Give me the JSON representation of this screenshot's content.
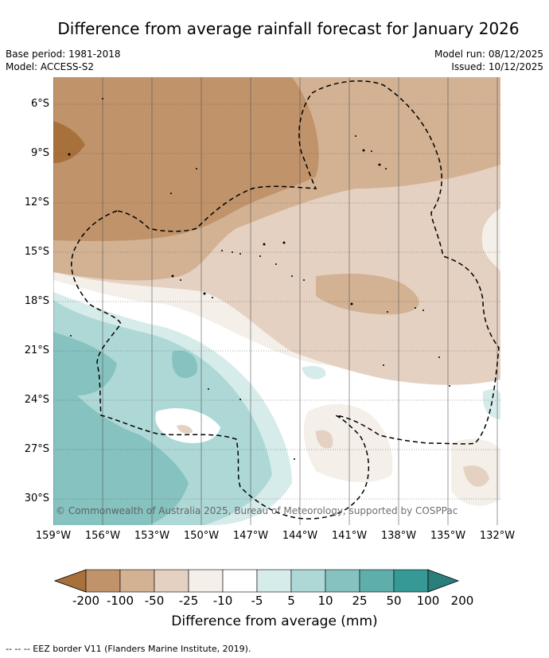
{
  "title": "Difference from average rainfall forecast for January 2026",
  "meta": {
    "base_period": "Base period: 1981-2018",
    "model": "Model: ACCESS-S2",
    "model_run": "Model run: 08/12/2025",
    "issued": "Issued: 10/12/2025"
  },
  "map": {
    "copyright": "© Commonwealth of Australia 2025, Bureau of Meteorology, supported by COSPPac",
    "lat_labels": [
      "6°S",
      "9°S",
      "12°S",
      "15°S",
      "18°S",
      "21°S",
      "24°S",
      "27°S",
      "30°S"
    ],
    "lon_labels": [
      "159°W",
      "156°W",
      "153°W",
      "150°W",
      "147°W",
      "144°W",
      "141°W",
      "138°W",
      "135°W",
      "132°W"
    ],
    "border_label": "EEZ border V11"
  },
  "colorbar": {
    "title": "Difference from average (mm)",
    "tick_labels": [
      "-200",
      "-100",
      "-50",
      "-25",
      "-10",
      "-5",
      "5",
      "10",
      "25",
      "50",
      "100",
      "200"
    ],
    "colors": [
      "#a8703b",
      "#c0936a",
      "#d3b293",
      "#e5d1c1",
      "#f4efe8",
      "#ffffff",
      "#d6ecea",
      "#aed8d6",
      "#85c2c0",
      "#5eaeab",
      "#379995",
      "#2a7f7b"
    ]
  },
  "footnote": "--  --  -- EEZ border V11 (Flanders Marine Institute, 2019)."
}
